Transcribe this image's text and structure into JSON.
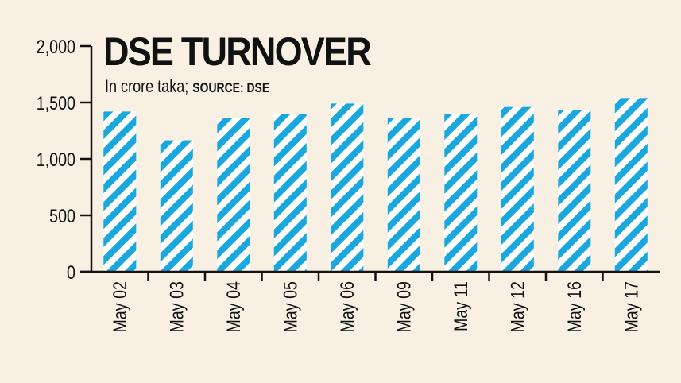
{
  "chart_data": {
    "type": "bar",
    "title": "DSE TURNOVER",
    "subtitle": "In crore taka;",
    "source": "SOURCE: DSE",
    "categories": [
      "May 02",
      "May 03",
      "May 04",
      "May 05",
      "May 06",
      "May 09",
      "May 11",
      "May 12",
      "May 16",
      "May 17"
    ],
    "values": [
      1420,
      1165,
      1360,
      1400,
      1490,
      1360,
      1400,
      1460,
      1430,
      1540
    ],
    "yticks": [
      "0",
      "500",
      "1,000",
      "1,500",
      "2,000"
    ],
    "ylim": [
      0,
      2000
    ],
    "bar_color": "#1aa7dd",
    "stripe_background": "#ffffff",
    "grid": false
  }
}
